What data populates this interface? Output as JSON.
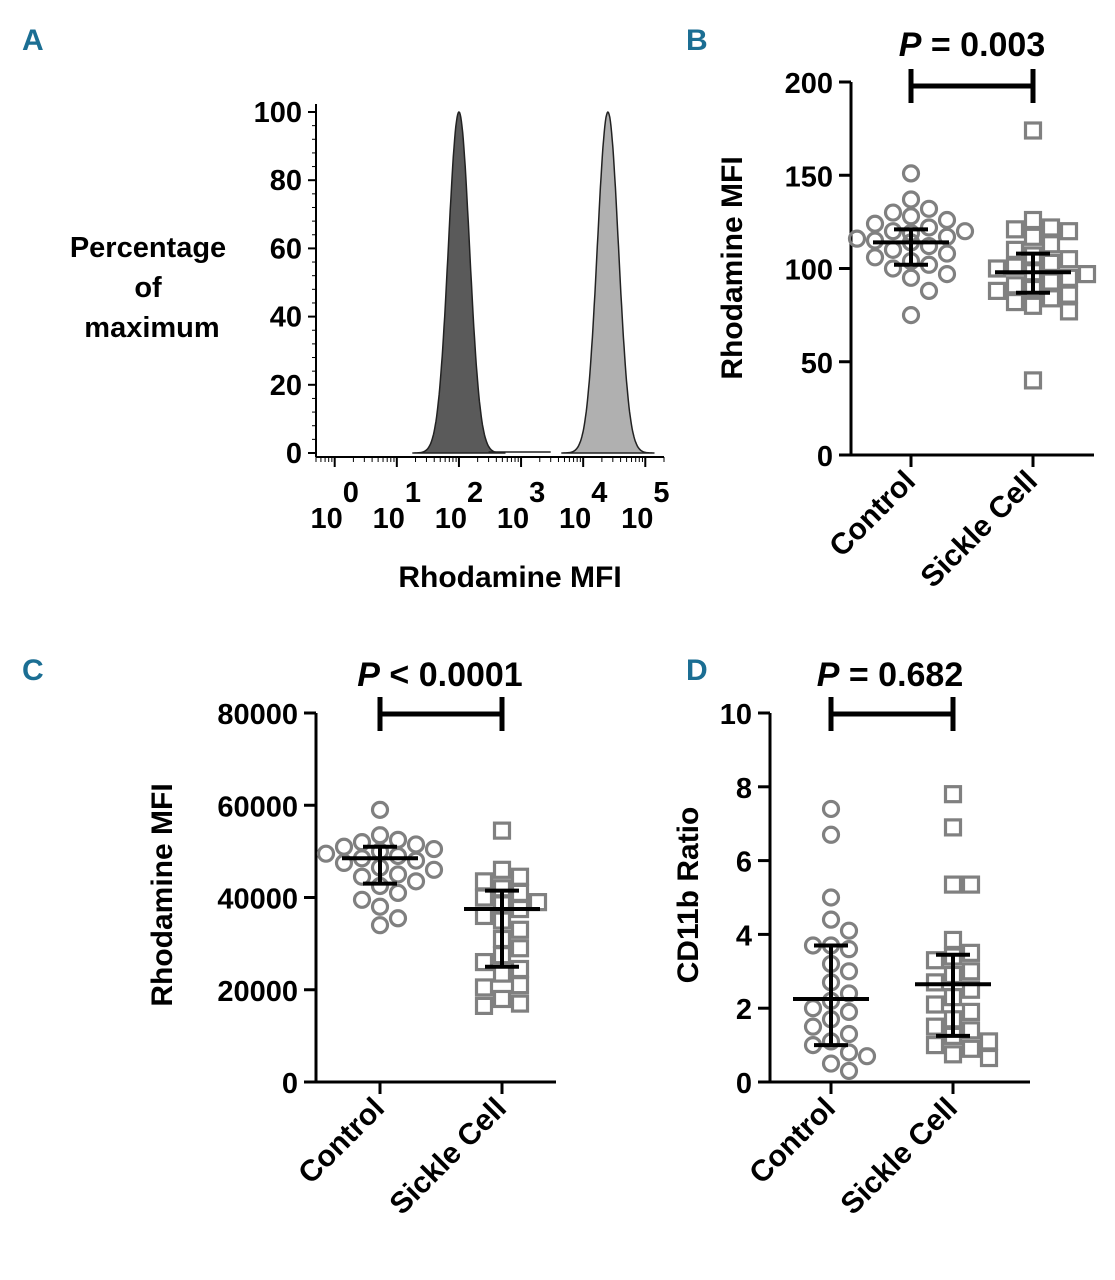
{
  "colors": {
    "panel_label": "#1b6e93",
    "control_hist": "#5a5a5a",
    "sickle_hist": "#b0b0b0",
    "marker": "#808080",
    "axis": "#000000"
  },
  "chart_data": [
    {
      "panel": "A",
      "type": "area",
      "title": "",
      "ylabel_lines": [
        "Percentage",
        "of",
        "maximum"
      ],
      "xlabel": "Rhodamine MFI",
      "xscale": "log",
      "xlim": [
        0.5,
        200000
      ],
      "ylim": [
        0,
        100
      ],
      "yticks": [
        "0",
        "20",
        "40",
        "60",
        "80",
        "100"
      ],
      "xticks": [
        {
          "base": "10",
          "exp": "0",
          "value": 1
        },
        {
          "base": "10",
          "exp": "1",
          "value": 10
        },
        {
          "base": "10",
          "exp": "2",
          "value": 100
        },
        {
          "base": "10",
          "exp": "3",
          "value": 1000
        },
        {
          "base": "10",
          "exp": "4",
          "value": 10000
        },
        {
          "base": "10",
          "exp": "5",
          "value": 100000
        }
      ],
      "series": [
        {
          "name": "dark histogram",
          "peak_x": 100,
          "peak_y": 100,
          "log_sd": 0.17
        },
        {
          "name": "light histogram",
          "peak_x": 25000,
          "peak_y": 100,
          "log_sd": 0.17
        }
      ]
    },
    {
      "panel": "B",
      "type": "scatter",
      "ylabel": "Rhodamine MFI",
      "categories": [
        "Control",
        "Sickle Cell"
      ],
      "ylim": [
        0,
        200
      ],
      "yticks": [
        "0",
        "50",
        "100",
        "150",
        "200"
      ],
      "p_label": "P",
      "p_text": " = 0.003",
      "series": [
        {
          "name": "Control",
          "marker": "circle",
          "median": 114,
          "q1": 102,
          "q3": 121,
          "values": [
            151,
            137,
            132,
            130,
            128,
            126,
            124,
            122,
            120,
            120,
            119,
            117,
            116,
            115,
            114,
            112,
            110,
            108,
            106,
            104,
            102,
            100,
            97,
            95,
            88,
            75
          ]
        },
        {
          "name": "Sickle Cell",
          "marker": "square",
          "median": 98,
          "q1": 87,
          "q3": 108,
          "values": [
            174,
            126,
            122,
            121,
            120,
            117,
            113,
            110,
            107,
            105,
            103,
            101,
            100,
            98,
            97,
            95,
            93,
            91,
            89,
            88,
            86,
            84,
            82,
            80,
            77,
            40
          ]
        }
      ]
    },
    {
      "panel": "C",
      "type": "scatter",
      "ylabel": "Rhodamine MFI",
      "categories": [
        "Control",
        "Sickle Cell"
      ],
      "ylim": [
        0,
        80000
      ],
      "yticks": [
        "0",
        "20000",
        "40000",
        "60000",
        "80000"
      ],
      "p_label": "P",
      "p_text": " < 0.0001",
      "series": [
        {
          "name": "Control",
          "marker": "circle",
          "median": 48500,
          "q1": 43000,
          "q3": 51000,
          "values": [
            59000,
            53500,
            52500,
            52000,
            51500,
            51000,
            50500,
            50000,
            49500,
            49000,
            48500,
            48000,
            47500,
            46500,
            46000,
            45000,
            44500,
            43500,
            42500,
            41000,
            39500,
            38000,
            35500,
            34000
          ]
        },
        {
          "name": "Sickle Cell",
          "marker": "square",
          "median": 37500,
          "q1": 25000,
          "q3": 41500,
          "values": [
            54500,
            46000,
            44500,
            43500,
            42000,
            41000,
            40000,
            39000,
            38500,
            37500,
            36000,
            35000,
            33000,
            31000,
            29000,
            27500,
            26000,
            24500,
            23500,
            21000,
            20500,
            18000,
            17000,
            16500
          ]
        }
      ]
    },
    {
      "panel": "D",
      "type": "scatter",
      "ylabel": "CD11b Ratio",
      "categories": [
        "Control",
        "Sickle Cell"
      ],
      "ylim": [
        0,
        10
      ],
      "yticks": [
        "0",
        "2",
        "4",
        "6",
        "8",
        "10"
      ],
      "p_label": "P",
      "p_text": " = 0.682",
      "series": [
        {
          "name": "Control",
          "marker": "circle",
          "median": 2.25,
          "q1": 1.0,
          "q3": 3.7,
          "values": [
            7.4,
            6.7,
            5.0,
            4.4,
            4.1,
            3.7,
            3.7,
            3.6,
            3.2,
            3.0,
            2.7,
            2.4,
            2.2,
            2.0,
            1.9,
            1.7,
            1.5,
            1.3,
            1.1,
            1.0,
            0.8,
            0.7,
            0.5,
            0.3
          ]
        },
        {
          "name": "Sickle Cell",
          "marker": "square",
          "median": 2.65,
          "q1": 1.25,
          "q3": 3.45,
          "values": [
            7.8,
            6.9,
            5.35,
            5.35,
            3.85,
            3.5,
            3.4,
            3.3,
            3.0,
            2.9,
            2.7,
            2.5,
            2.3,
            2.1,
            1.9,
            1.7,
            1.5,
            1.4,
            1.25,
            1.1,
            1.0,
            0.9,
            0.75,
            0.65
          ]
        }
      ]
    }
  ]
}
